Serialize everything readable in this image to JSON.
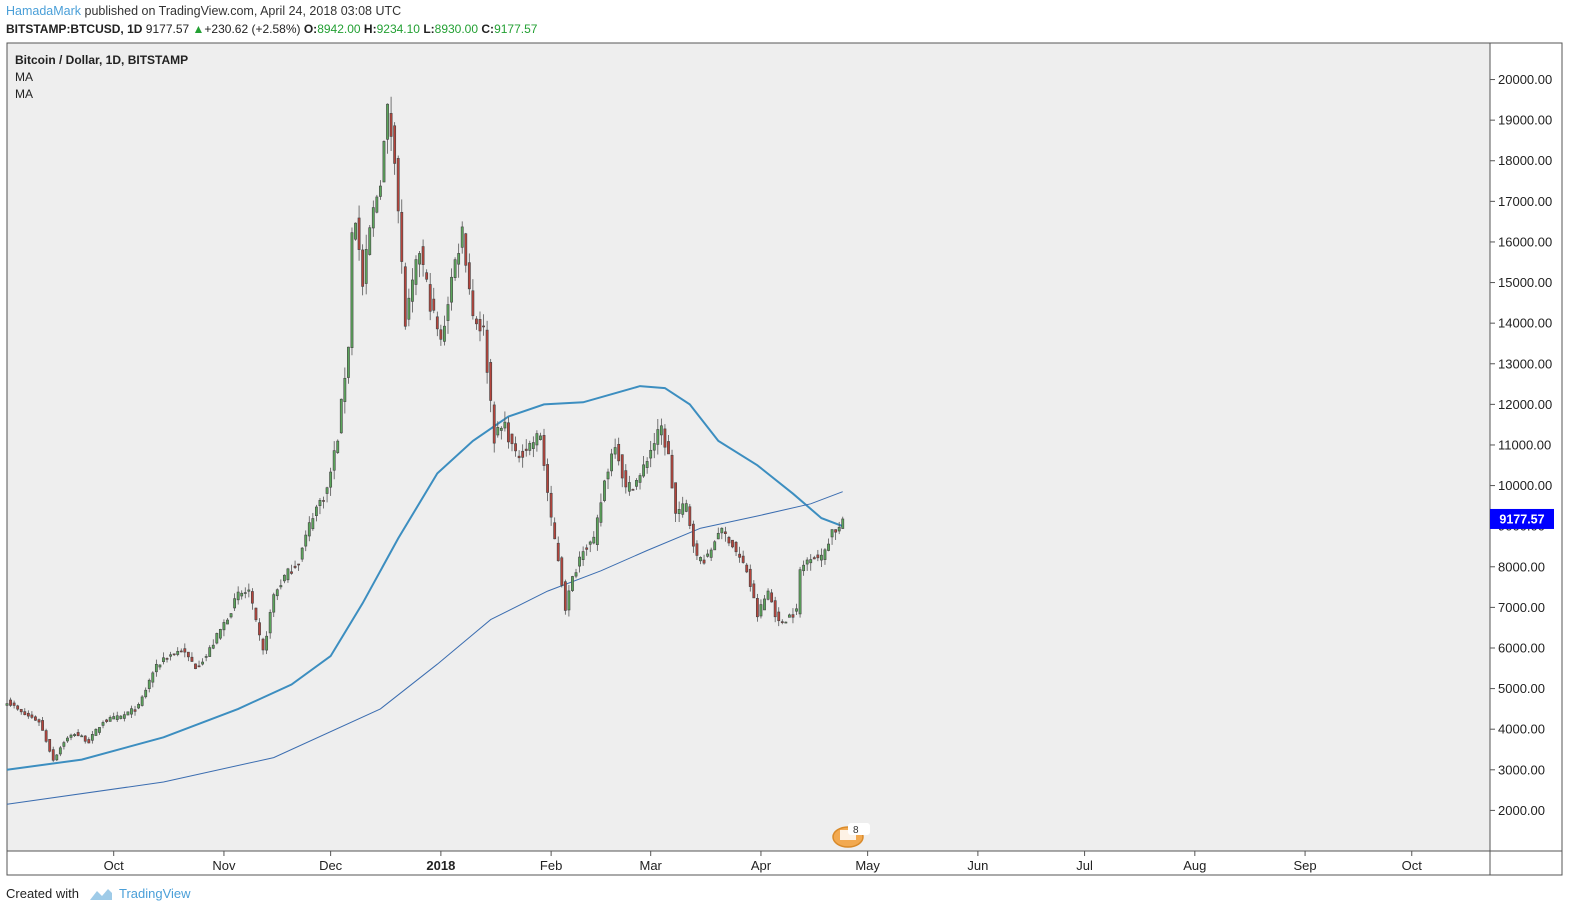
{
  "header": {
    "author": "HamadaMark",
    "published_text": "published on TradingView.com, April 24, 2018 03:08 UTC",
    "symbol": "BITSTAMP:BTCUSD, 1D",
    "last": "9177.57",
    "change": "+230.62 (+2.58%)",
    "o_label": "O:",
    "o_value": "8942.00",
    "h_label": "H:",
    "h_value": "9234.10",
    "l_label": "L:",
    "l_value": "8930.00",
    "c_label": "C:",
    "c_value": "9177.57"
  },
  "legend": {
    "title": "Bitcoin / Dollar, 1D, BITSTAMP",
    "ma1": "MA",
    "ma2": "MA"
  },
  "price_label": {
    "value": "9177.57",
    "color": "#0000ff"
  },
  "event_badge": "8",
  "footer": {
    "created_with": "Created with",
    "brand": "TradingView"
  },
  "colors": {
    "up": "#5ba55b",
    "down": "#b5443c",
    "ma": "#3c8ec0",
    "background": "#eeeeee"
  },
  "chart_data": {
    "type": "candlestick",
    "title": "Bitcoin / Dollar, 1D, BITSTAMP",
    "ylim": [
      1000,
      20900
    ],
    "y_ticks": [
      "20000.00",
      "19000.00",
      "18000.00",
      "17000.00",
      "16000.00",
      "15000.00",
      "14000.00",
      "13000.00",
      "12000.00",
      "11000.00",
      "10000.00",
      "9000.00",
      "8000.00",
      "7000.00",
      "6000.00",
      "5000.00",
      "4000.00",
      "3000.00",
      "2000.00"
    ],
    "x_range": [
      "2017-09-01",
      "2018-10-23"
    ],
    "x_ticks": [
      {
        "date": "2017-10-01",
        "label": "Oct",
        "bold": false
      },
      {
        "date": "2017-11-01",
        "label": "Nov",
        "bold": false
      },
      {
        "date": "2017-12-01",
        "label": "Dec",
        "bold": false
      },
      {
        "date": "2018-01-01",
        "label": "2018",
        "bold": true
      },
      {
        "date": "2018-02-01",
        "label": "Feb",
        "bold": false
      },
      {
        "date": "2018-03-01",
        "label": "Mar",
        "bold": false
      },
      {
        "date": "2018-04-01",
        "label": "Apr",
        "bold": false
      },
      {
        "date": "2018-05-01",
        "label": "May",
        "bold": false
      },
      {
        "date": "2018-06-01",
        "label": "Jun",
        "bold": false
      },
      {
        "date": "2018-07-01",
        "label": "Jul",
        "bold": false
      },
      {
        "date": "2018-08-01",
        "label": "Aug",
        "bold": false
      },
      {
        "date": "2018-09-01",
        "label": "Sep",
        "bold": false
      },
      {
        "date": "2018-10-01",
        "label": "Oct",
        "bold": false
      }
    ],
    "close_anchors": [
      [
        "2017-09-01",
        4700
      ],
      [
        "2017-09-05",
        4400
      ],
      [
        "2017-09-10",
        4200
      ],
      [
        "2017-09-14",
        3250
      ],
      [
        "2017-09-17",
        3700
      ],
      [
        "2017-09-20",
        3900
      ],
      [
        "2017-09-24",
        3700
      ],
      [
        "2017-09-28",
        4200
      ],
      [
        "2017-10-03",
        4300
      ],
      [
        "2017-10-08",
        4550
      ],
      [
        "2017-10-12",
        5400
      ],
      [
        "2017-10-15",
        5750
      ],
      [
        "2017-10-20",
        5950
      ],
      [
        "2017-10-24",
        5550
      ],
      [
        "2017-10-27",
        5800
      ],
      [
        "2017-11-01",
        6600
      ],
      [
        "2017-11-05",
        7300
      ],
      [
        "2017-11-08",
        7400
      ],
      [
        "2017-11-10",
        6600
      ],
      [
        "2017-11-12",
        5900
      ],
      [
        "2017-11-15",
        7300
      ],
      [
        "2017-11-18",
        7750
      ],
      [
        "2017-11-22",
        8150
      ],
      [
        "2017-11-26",
        9300
      ],
      [
        "2017-11-30",
        9900
      ],
      [
        "2017-12-03",
        11200
      ],
      [
        "2017-12-06",
        13500
      ],
      [
        "2017-12-07",
        16200
      ],
      [
        "2017-12-08",
        16600
      ],
      [
        "2017-12-10",
        14900
      ],
      [
        "2017-12-12",
        16300
      ],
      [
        "2017-12-15",
        17600
      ],
      [
        "2017-12-17",
        19200
      ],
      [
        "2017-12-19",
        18200
      ],
      [
        "2017-12-22",
        14000
      ],
      [
        "2017-12-26",
        15800
      ],
      [
        "2017-12-29",
        14500
      ],
      [
        "2018-01-01",
        13500
      ],
      [
        "2018-01-04",
        15100
      ],
      [
        "2018-01-07",
        16300
      ],
      [
        "2018-01-10",
        14200
      ],
      [
        "2018-01-13",
        13800
      ],
      [
        "2018-01-16",
        11200
      ],
      [
        "2018-01-19",
        11500
      ],
      [
        "2018-01-22",
        10700
      ],
      [
        "2018-01-26",
        11000
      ],
      [
        "2018-01-29",
        11250
      ],
      [
        "2018-02-01",
        9100
      ],
      [
        "2018-02-03",
        8200
      ],
      [
        "2018-02-05",
        7000
      ],
      [
        "2018-02-07",
        7700
      ],
      [
        "2018-02-10",
        8500
      ],
      [
        "2018-02-13",
        8600
      ],
      [
        "2018-02-16",
        10100
      ],
      [
        "2018-02-19",
        11100
      ],
      [
        "2018-02-22",
        9900
      ],
      [
        "2018-02-26",
        10200
      ],
      [
        "2018-03-01",
        10900
      ],
      [
        "2018-03-04",
        11400
      ],
      [
        "2018-03-06",
        10700
      ],
      [
        "2018-03-08",
        9300
      ],
      [
        "2018-03-11",
        9500
      ],
      [
        "2018-03-14",
        8200
      ],
      [
        "2018-03-17",
        8200
      ],
      [
        "2018-03-20",
        8900
      ],
      [
        "2018-03-23",
        8700
      ],
      [
        "2018-03-26",
        8200
      ],
      [
        "2018-03-28",
        7900
      ],
      [
        "2018-03-31",
        6800
      ],
      [
        "2018-04-03",
        7400
      ],
      [
        "2018-04-06",
        6600
      ],
      [
        "2018-04-09",
        6800
      ],
      [
        "2018-04-11",
        6900
      ],
      [
        "2018-04-12",
        7900
      ],
      [
        "2018-04-15",
        8300
      ],
      [
        "2018-04-18",
        8200
      ],
      [
        "2018-04-21",
        8900
      ],
      [
        "2018-04-23",
        8940
      ],
      [
        "2018-04-24",
        9177.57
      ]
    ],
    "ma_fast": [
      [
        "2017-09-01",
        3000
      ],
      [
        "2017-09-22",
        3250
      ],
      [
        "2017-10-15",
        3800
      ],
      [
        "2017-11-05",
        4500
      ],
      [
        "2017-11-20",
        5100
      ],
      [
        "2017-12-01",
        5800
      ],
      [
        "2017-12-10",
        7100
      ],
      [
        "2017-12-20",
        8700
      ],
      [
        "2017-12-31",
        10300
      ],
      [
        "2018-01-10",
        11100
      ],
      [
        "2018-01-20",
        11700
      ],
      [
        "2018-01-30",
        12000
      ],
      [
        "2018-02-10",
        12050
      ],
      [
        "2018-02-20",
        12300
      ],
      [
        "2018-02-26",
        12450
      ],
      [
        "2018-03-05",
        12400
      ],
      [
        "2018-03-12",
        12000
      ],
      [
        "2018-03-20",
        11100
      ],
      [
        "2018-03-31",
        10500
      ],
      [
        "2018-04-10",
        9800
      ],
      [
        "2018-04-18",
        9200
      ],
      [
        "2018-04-24",
        9000
      ]
    ],
    "ma_slow": [
      [
        "2017-09-01",
        2150
      ],
      [
        "2017-10-15",
        2700
      ],
      [
        "2017-11-15",
        3300
      ],
      [
        "2017-12-15",
        4500
      ],
      [
        "2017-12-31",
        5600
      ],
      [
        "2018-01-15",
        6700
      ],
      [
        "2018-01-31",
        7400
      ],
      [
        "2018-02-15",
        7900
      ],
      [
        "2018-02-28",
        8400
      ],
      [
        "2018-03-15",
        8950
      ],
      [
        "2018-03-31",
        9250
      ],
      [
        "2018-04-15",
        9550
      ],
      [
        "2018-04-24",
        9850
      ]
    ]
  }
}
